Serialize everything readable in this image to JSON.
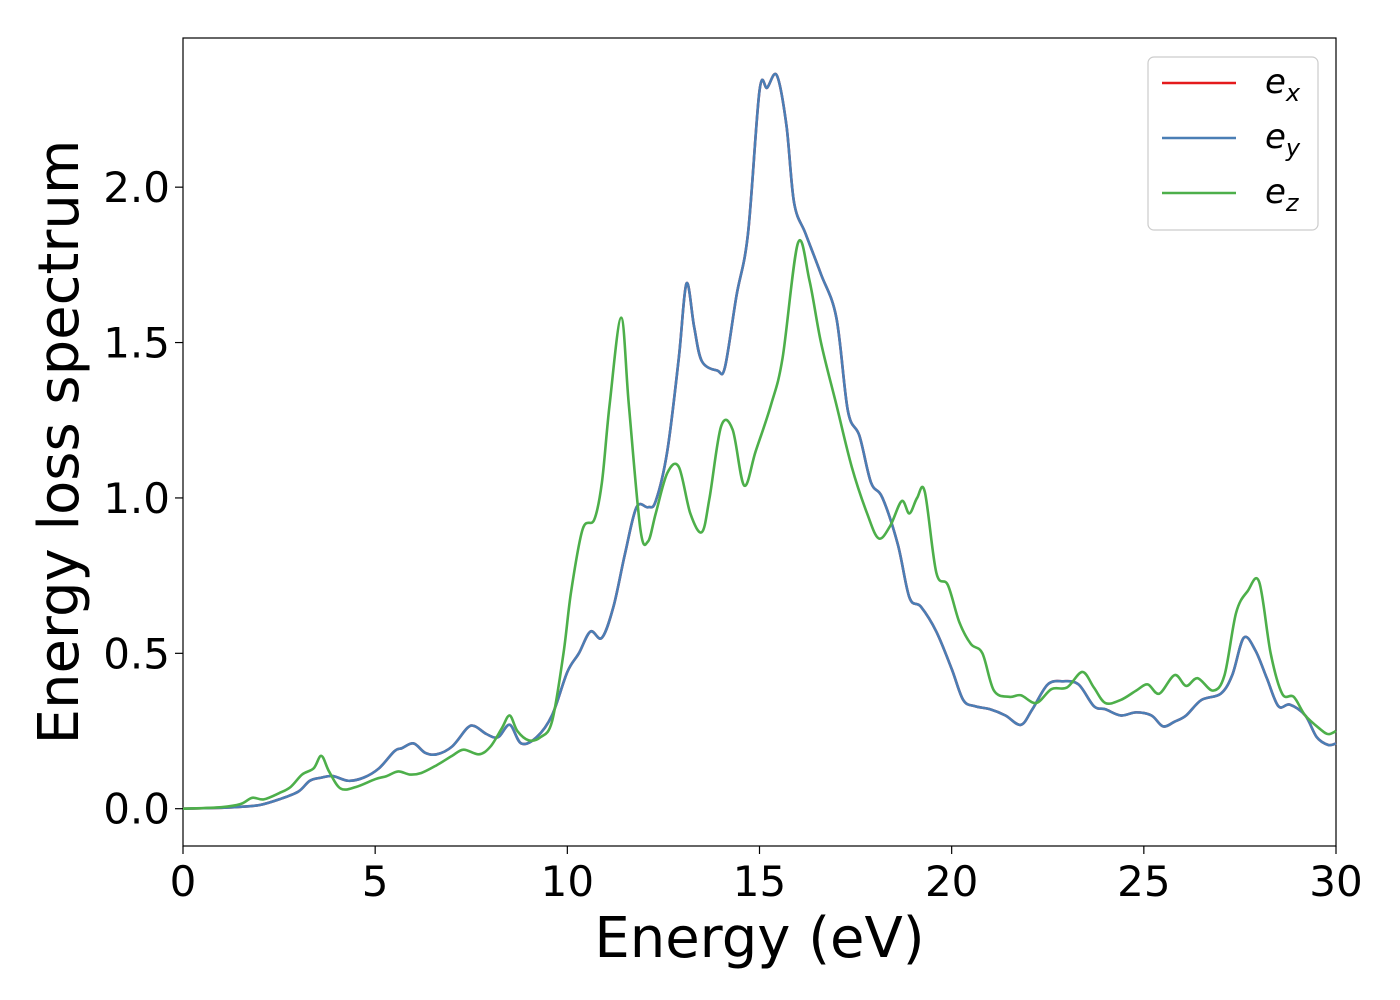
{
  "chart_data": {
    "type": "line",
    "title": "",
    "xlabel": "Energy (eV)",
    "ylabel": "Energy loss spectrum",
    "xlim": [
      0,
      30
    ],
    "ylim": [
      -0.12,
      2.48
    ],
    "xticks": [
      0,
      5,
      10,
      15,
      20,
      25,
      30
    ],
    "xtick_labels": [
      "0",
      "5",
      "10",
      "15",
      "20",
      "25",
      "30"
    ],
    "yticks": [
      0.0,
      0.5,
      1.0,
      1.5,
      2.0
    ],
    "ytick_labels": [
      "0.0",
      "0.5",
      "1.0",
      "1.5",
      "2.0"
    ],
    "grid": false,
    "legend_position": "top-right",
    "series": [
      {
        "name": "e_x",
        "legend_main": "e",
        "legend_sub": "x",
        "color": "#e41a1c",
        "points": [
          [
            0,
            0
          ],
          [
            1,
            0.003
          ],
          [
            1.5,
            0.006
          ],
          [
            2,
            0.012
          ],
          [
            2.5,
            0.03
          ],
          [
            3,
            0.055
          ],
          [
            3.3,
            0.09
          ],
          [
            3.6,
            0.1
          ],
          [
            3.9,
            0.105
          ],
          [
            4.3,
            0.09
          ],
          [
            4.7,
            0.1
          ],
          [
            5.1,
            0.13
          ],
          [
            5.5,
            0.185
          ],
          [
            5.7,
            0.195
          ],
          [
            6,
            0.21
          ],
          [
            6.3,
            0.18
          ],
          [
            6.6,
            0.175
          ],
          [
            7,
            0.2
          ],
          [
            7.4,
            0.26
          ],
          [
            7.6,
            0.265
          ],
          [
            7.9,
            0.24
          ],
          [
            8.2,
            0.23
          ],
          [
            8.5,
            0.27
          ],
          [
            8.8,
            0.21
          ],
          [
            9.2,
            0.23
          ],
          [
            9.6,
            0.3
          ],
          [
            10,
            0.44
          ],
          [
            10.3,
            0.5
          ],
          [
            10.6,
            0.57
          ],
          [
            10.9,
            0.55
          ],
          [
            11.2,
            0.65
          ],
          [
            11.5,
            0.82
          ],
          [
            11.8,
            0.97
          ],
          [
            12.1,
            0.97
          ],
          [
            12.3,
            0.99
          ],
          [
            12.6,
            1.15
          ],
          [
            12.9,
            1.45
          ],
          [
            13.1,
            1.69
          ],
          [
            13.3,
            1.55
          ],
          [
            13.5,
            1.44
          ],
          [
            13.9,
            1.41
          ],
          [
            14.1,
            1.42
          ],
          [
            14.4,
            1.65
          ],
          [
            14.7,
            1.85
          ],
          [
            15,
            2.31
          ],
          [
            15.2,
            2.32
          ],
          [
            15.45,
            2.36
          ],
          [
            15.7,
            2.2
          ],
          [
            15.9,
            1.95
          ],
          [
            16.2,
            1.85
          ],
          [
            16.6,
            1.72
          ],
          [
            17,
            1.58
          ],
          [
            17.3,
            1.28
          ],
          [
            17.6,
            1.2
          ],
          [
            17.9,
            1.05
          ],
          [
            18.2,
            1.0
          ],
          [
            18.6,
            0.85
          ],
          [
            18.9,
            0.68
          ],
          [
            19.2,
            0.65
          ],
          [
            19.6,
            0.57
          ],
          [
            20,
            0.45
          ],
          [
            20.3,
            0.35
          ],
          [
            20.6,
            0.33
          ],
          [
            21,
            0.32
          ],
          [
            21.4,
            0.3
          ],
          [
            21.8,
            0.27
          ],
          [
            22.1,
            0.32
          ],
          [
            22.5,
            0.4
          ],
          [
            22.9,
            0.41
          ],
          [
            23.3,
            0.4
          ],
          [
            23.7,
            0.33
          ],
          [
            24,
            0.32
          ],
          [
            24.4,
            0.3
          ],
          [
            24.8,
            0.31
          ],
          [
            25.2,
            0.3
          ],
          [
            25.5,
            0.265
          ],
          [
            25.8,
            0.28
          ],
          [
            26.1,
            0.3
          ],
          [
            26.5,
            0.35
          ],
          [
            27,
            0.37
          ],
          [
            27.3,
            0.43
          ],
          [
            27.6,
            0.55
          ],
          [
            27.9,
            0.51
          ],
          [
            28.2,
            0.42
          ],
          [
            28.5,
            0.33
          ],
          [
            28.8,
            0.335
          ],
          [
            29.2,
            0.3
          ],
          [
            29.5,
            0.23
          ],
          [
            29.8,
            0.205
          ],
          [
            30,
            0.21
          ]
        ]
      },
      {
        "name": "e_y",
        "legend_main": "e",
        "legend_sub": "y",
        "color": "#4a7eb5",
        "points": [
          [
            0,
            0
          ],
          [
            1,
            0.003
          ],
          [
            1.5,
            0.006
          ],
          [
            2,
            0.012
          ],
          [
            2.5,
            0.03
          ],
          [
            3,
            0.055
          ],
          [
            3.3,
            0.09
          ],
          [
            3.6,
            0.1
          ],
          [
            3.9,
            0.105
          ],
          [
            4.3,
            0.09
          ],
          [
            4.7,
            0.1
          ],
          [
            5.1,
            0.13
          ],
          [
            5.5,
            0.185
          ],
          [
            5.7,
            0.195
          ],
          [
            6,
            0.21
          ],
          [
            6.3,
            0.18
          ],
          [
            6.6,
            0.175
          ],
          [
            7,
            0.2
          ],
          [
            7.4,
            0.26
          ],
          [
            7.6,
            0.265
          ],
          [
            7.9,
            0.24
          ],
          [
            8.2,
            0.23
          ],
          [
            8.5,
            0.27
          ],
          [
            8.8,
            0.21
          ],
          [
            9.2,
            0.23
          ],
          [
            9.6,
            0.3
          ],
          [
            10,
            0.44
          ],
          [
            10.3,
            0.5
          ],
          [
            10.6,
            0.57
          ],
          [
            10.9,
            0.55
          ],
          [
            11.2,
            0.65
          ],
          [
            11.5,
            0.82
          ],
          [
            11.8,
            0.97
          ],
          [
            12.1,
            0.97
          ],
          [
            12.3,
            0.99
          ],
          [
            12.6,
            1.15
          ],
          [
            12.9,
            1.45
          ],
          [
            13.1,
            1.69
          ],
          [
            13.3,
            1.55
          ],
          [
            13.5,
            1.44
          ],
          [
            13.9,
            1.41
          ],
          [
            14.1,
            1.42
          ],
          [
            14.4,
            1.65
          ],
          [
            14.7,
            1.85
          ],
          [
            15,
            2.31
          ],
          [
            15.2,
            2.32
          ],
          [
            15.45,
            2.36
          ],
          [
            15.7,
            2.2
          ],
          [
            15.9,
            1.95
          ],
          [
            16.2,
            1.85
          ],
          [
            16.6,
            1.72
          ],
          [
            17,
            1.58
          ],
          [
            17.3,
            1.28
          ],
          [
            17.6,
            1.2
          ],
          [
            17.9,
            1.05
          ],
          [
            18.2,
            1.0
          ],
          [
            18.6,
            0.85
          ],
          [
            18.9,
            0.68
          ],
          [
            19.2,
            0.65
          ],
          [
            19.6,
            0.57
          ],
          [
            20,
            0.45
          ],
          [
            20.3,
            0.35
          ],
          [
            20.6,
            0.33
          ],
          [
            21,
            0.32
          ],
          [
            21.4,
            0.3
          ],
          [
            21.8,
            0.27
          ],
          [
            22.1,
            0.32
          ],
          [
            22.5,
            0.4
          ],
          [
            22.9,
            0.41
          ],
          [
            23.3,
            0.4
          ],
          [
            23.7,
            0.33
          ],
          [
            24,
            0.32
          ],
          [
            24.4,
            0.3
          ],
          [
            24.8,
            0.31
          ],
          [
            25.2,
            0.3
          ],
          [
            25.5,
            0.265
          ],
          [
            25.8,
            0.28
          ],
          [
            26.1,
            0.3
          ],
          [
            26.5,
            0.35
          ],
          [
            27,
            0.37
          ],
          [
            27.3,
            0.43
          ],
          [
            27.6,
            0.55
          ],
          [
            27.9,
            0.51
          ],
          [
            28.2,
            0.42
          ],
          [
            28.5,
            0.33
          ],
          [
            28.8,
            0.335
          ],
          [
            29.2,
            0.3
          ],
          [
            29.5,
            0.23
          ],
          [
            29.8,
            0.205
          ],
          [
            30,
            0.21
          ]
        ]
      },
      {
        "name": "e_z",
        "legend_main": "e",
        "legend_sub": "z",
        "color": "#4daf4a",
        "points": [
          [
            0,
            0
          ],
          [
            1,
            0.005
          ],
          [
            1.5,
            0.015
          ],
          [
            1.8,
            0.035
          ],
          [
            2.1,
            0.03
          ],
          [
            2.5,
            0.05
          ],
          [
            2.8,
            0.07
          ],
          [
            3.1,
            0.11
          ],
          [
            3.4,
            0.13
          ],
          [
            3.6,
            0.17
          ],
          [
            3.8,
            0.12
          ],
          [
            4.1,
            0.065
          ],
          [
            4.5,
            0.07
          ],
          [
            5,
            0.095
          ],
          [
            5.3,
            0.105
          ],
          [
            5.6,
            0.12
          ],
          [
            5.9,
            0.11
          ],
          [
            6.2,
            0.115
          ],
          [
            6.6,
            0.14
          ],
          [
            7,
            0.17
          ],
          [
            7.3,
            0.19
          ],
          [
            7.7,
            0.175
          ],
          [
            8,
            0.2
          ],
          [
            8.3,
            0.26
          ],
          [
            8.5,
            0.3
          ],
          [
            8.7,
            0.25
          ],
          [
            9,
            0.22
          ],
          [
            9.3,
            0.23
          ],
          [
            9.6,
            0.28
          ],
          [
            9.9,
            0.5
          ],
          [
            10.1,
            0.7
          ],
          [
            10.4,
            0.9
          ],
          [
            10.7,
            0.93
          ],
          [
            10.9,
            1.05
          ],
          [
            11.1,
            1.3
          ],
          [
            11.4,
            1.58
          ],
          [
            11.6,
            1.3
          ],
          [
            11.9,
            0.9
          ],
          [
            12.1,
            0.86
          ],
          [
            12.3,
            0.95
          ],
          [
            12.6,
            1.08
          ],
          [
            12.9,
            1.1
          ],
          [
            13.2,
            0.95
          ],
          [
            13.5,
            0.89
          ],
          [
            13.7,
            1.0
          ],
          [
            14,
            1.23
          ],
          [
            14.3,
            1.22
          ],
          [
            14.6,
            1.04
          ],
          [
            14.9,
            1.15
          ],
          [
            15.3,
            1.3
          ],
          [
            15.6,
            1.45
          ],
          [
            16,
            1.82
          ],
          [
            16.3,
            1.7
          ],
          [
            16.6,
            1.5
          ],
          [
            17,
            1.3
          ],
          [
            17.4,
            1.1
          ],
          [
            17.8,
            0.95
          ],
          [
            18.1,
            0.87
          ],
          [
            18.4,
            0.91
          ],
          [
            18.7,
            0.99
          ],
          [
            18.9,
            0.95
          ],
          [
            19.1,
            1.0
          ],
          [
            19.3,
            1.02
          ],
          [
            19.6,
            0.76
          ],
          [
            19.9,
            0.72
          ],
          [
            20.2,
            0.6
          ],
          [
            20.5,
            0.53
          ],
          [
            20.8,
            0.5
          ],
          [
            21.1,
            0.38
          ],
          [
            21.5,
            0.36
          ],
          [
            21.8,
            0.365
          ],
          [
            22.2,
            0.34
          ],
          [
            22.6,
            0.385
          ],
          [
            23,
            0.39
          ],
          [
            23.4,
            0.44
          ],
          [
            23.7,
            0.39
          ],
          [
            24,
            0.34
          ],
          [
            24.4,
            0.35
          ],
          [
            24.8,
            0.38
          ],
          [
            25.1,
            0.4
          ],
          [
            25.4,
            0.37
          ],
          [
            25.8,
            0.43
          ],
          [
            26.1,
            0.395
          ],
          [
            26.4,
            0.42
          ],
          [
            26.8,
            0.38
          ],
          [
            27.1,
            0.43
          ],
          [
            27.4,
            0.63
          ],
          [
            27.7,
            0.7
          ],
          [
            28,
            0.73
          ],
          [
            28.3,
            0.5
          ],
          [
            28.6,
            0.37
          ],
          [
            28.9,
            0.36
          ],
          [
            29.2,
            0.3
          ],
          [
            29.6,
            0.255
          ],
          [
            29.8,
            0.24
          ],
          [
            30,
            0.25
          ]
        ]
      }
    ]
  }
}
